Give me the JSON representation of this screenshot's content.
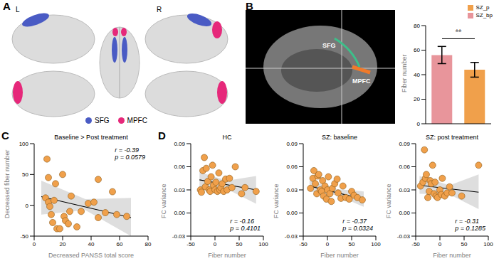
{
  "panels": {
    "A": {
      "panel": "A",
      "hemisphere_labels": [
        "L",
        "R"
      ],
      "legend": [
        {
          "name": "SFG",
          "color": "#4a5bc4"
        },
        {
          "name": "MPFC",
          "color": "#e6287a"
        }
      ]
    },
    "B_image": {
      "labels": [
        {
          "text": "SFG",
          "color": "#3dbf8a"
        },
        {
          "text": "MPFC",
          "color": "#f07a2a"
        }
      ]
    }
  },
  "chart_data": [
    {
      "panel": "B",
      "type": "bar",
      "y_label": "Fiber number",
      "categories": [
        "SZ_bp",
        "SZ_p"
      ],
      "values": [
        56,
        44
      ],
      "errors": [
        7,
        6
      ],
      "colors": [
        "#e8959b",
        "#f0a04b"
      ],
      "ylim": [
        0,
        80
      ],
      "yticks": [
        0,
        20,
        40,
        60,
        80
      ],
      "tick_labels": "y",
      "significance": "**"
    },
    {
      "panel": "C",
      "type": "scatter",
      "title": "Baseline > Post treatment",
      "x_label": "Decreased PANSS total score",
      "y_label": "Decreased fiber number",
      "xlim": [
        0,
        80
      ],
      "xticks": [
        0,
        20,
        40,
        60,
        80
      ],
      "ylim": [
        -50,
        100
      ],
      "yticks": [
        -50,
        0,
        50,
        100
      ],
      "color": "#f0a04b",
      "annotations": [
        "r = -0.39",
        "p = 0.0579"
      ],
      "x": [
        8,
        9,
        10,
        10,
        11,
        12,
        13,
        14,
        15,
        16,
        18,
        20,
        21,
        22,
        24,
        25,
        26,
        30,
        33,
        38,
        42,
        45,
        45,
        50,
        55,
        58,
        65
      ],
      "y": [
        12,
        75,
        45,
        5,
        -2,
        -15,
        -28,
        8,
        35,
        -38,
        -38,
        50,
        -18,
        -25,
        -30,
        -10,
        15,
        -35,
        -10,
        3,
        5,
        -20,
        42,
        -12,
        22,
        -15,
        -18
      ],
      "fit": {
        "x": [
          5,
          68
        ],
        "y": [
          14,
          -20
        ]
      },
      "band": {
        "x": [
          5,
          36,
          68
        ],
        "lower": [
          -15,
          -8,
          -50
        ],
        "upper": [
          40,
          10,
          12
        ]
      }
    },
    {
      "panel": "D",
      "type": "scatter",
      "title": "HC",
      "x_label": "Fiber number",
      "y_label": "FC variance",
      "xlim": [
        -50,
        100
      ],
      "xticks": [
        -50,
        0,
        50,
        100
      ],
      "ylim": [
        -0.03,
        0.09
      ],
      "yticks": [
        -0.03,
        {
          "value": 0,
          "label": "0.00"
        },
        0.03,
        0.06,
        0.09
      ],
      "color": "#f0a04b",
      "annotations": [
        "r = -0.16",
        "p = 0.4101"
      ],
      "x": [
        -30,
        -28,
        -25,
        -22,
        -20,
        -18,
        -15,
        -12,
        -10,
        -8,
        -5,
        -3,
        0,
        2,
        5,
        8,
        10,
        12,
        15,
        18,
        22,
        25,
        30,
        35,
        42,
        55,
        62,
        85
      ],
      "y": [
        0.03,
        0.027,
        0.055,
        0.072,
        0.034,
        0.058,
        0.041,
        0.03,
        0.028,
        0.047,
        0.062,
        0.036,
        0.03,
        0.04,
        0.028,
        0.052,
        0.03,
        0.033,
        0.038,
        0.028,
        0.044,
        0.03,
        0.045,
        0.033,
        0.06,
        0.025,
        0.033,
        0.028
      ],
      "fit": {
        "x": [
          -32,
          85
        ],
        "y": [
          0.043,
          0.03
        ]
      },
      "band": {
        "x": [
          -32,
          25,
          85
        ],
        "lower": [
          0.033,
          0.031,
          0.012
        ],
        "upper": [
          0.053,
          0.042,
          0.048
        ]
      }
    },
    {
      "panel": null,
      "type": "scatter",
      "title": "SZ: baseline",
      "x_label": "Fiber number",
      "y_label": "FC variance",
      "xlim": [
        -50,
        100
      ],
      "xticks": [
        -50,
        0,
        50,
        100
      ],
      "ylim": [
        -0.03,
        0.09
      ],
      "yticks": [
        -0.03,
        {
          "value": 0,
          "label": "0.00"
        },
        0.03,
        0.06,
        0.09
      ],
      "color": "#f0a04b",
      "annotations": [
        "r = -0.37",
        "p = 0.0324"
      ],
      "x": [
        -35,
        -30,
        -28,
        -25,
        -22,
        -20,
        -18,
        -15,
        -12,
        -10,
        -8,
        -5,
        -2,
        0,
        2,
        5,
        8,
        10,
        15,
        20,
        22,
        28,
        32,
        38,
        45,
        50,
        55,
        62,
        72
      ],
      "y": [
        0.032,
        0.045,
        0.055,
        0.038,
        0.025,
        0.048,
        0.05,
        0.03,
        0.028,
        0.042,
        0.022,
        0.035,
        0.018,
        0.03,
        0.047,
        0.025,
        0.015,
        0.032,
        0.038,
        0.044,
        0.026,
        0.019,
        0.035,
        0.02,
        0.018,
        0.028,
        0.023,
        0.02,
        0.017
      ],
      "fit": {
        "x": [
          -37,
          75
        ],
        "y": [
          0.035,
          0.018
        ]
      },
      "band": {
        "x": [
          -37,
          20,
          75
        ],
        "lower": [
          0.028,
          0.023,
          0.008
        ],
        "upper": [
          0.042,
          0.031,
          0.028
        ]
      }
    },
    {
      "panel": null,
      "type": "scatter",
      "title": "SZ: post treatment",
      "x_label": "Fiber number",
      "y_label": "FC variance",
      "xlim": [
        -50,
        100
      ],
      "xticks": [
        -50,
        0,
        50,
        100
      ],
      "ylim": [
        -0.03,
        0.09
      ],
      "yticks": [
        -0.03,
        {
          "value": 0,
          "label": "0.00"
        },
        0.03,
        0.06,
        0.09
      ],
      "color": "#f0a04b",
      "annotations": [
        "r = -0.31",
        "p = 0.1285"
      ],
      "x": [
        -40,
        -35,
        -32,
        -30,
        -28,
        -25,
        -22,
        -20,
        -18,
        -15,
        -12,
        -10,
        -8,
        -5,
        0,
        3,
        5,
        10,
        15,
        20,
        25,
        45,
        80
      ],
      "y": [
        0.035,
        0.04,
        0.082,
        0.045,
        0.05,
        0.02,
        0.028,
        0.042,
        0.038,
        0.062,
        0.025,
        0.04,
        0.022,
        0.02,
        0.03,
        0.024,
        0.045,
        0.022,
        0.026,
        0.034,
        0.026,
        0.022,
        0.062
      ],
      "fit": {
        "x": [
          -42,
          80
        ],
        "y": [
          0.036,
          0.027
        ]
      },
      "band": {
        "x": [
          -42,
          20,
          80
        ],
        "lower": [
          0.025,
          0.024,
          0.005
        ],
        "upper": [
          0.048,
          0.036,
          0.05
        ]
      }
    }
  ]
}
